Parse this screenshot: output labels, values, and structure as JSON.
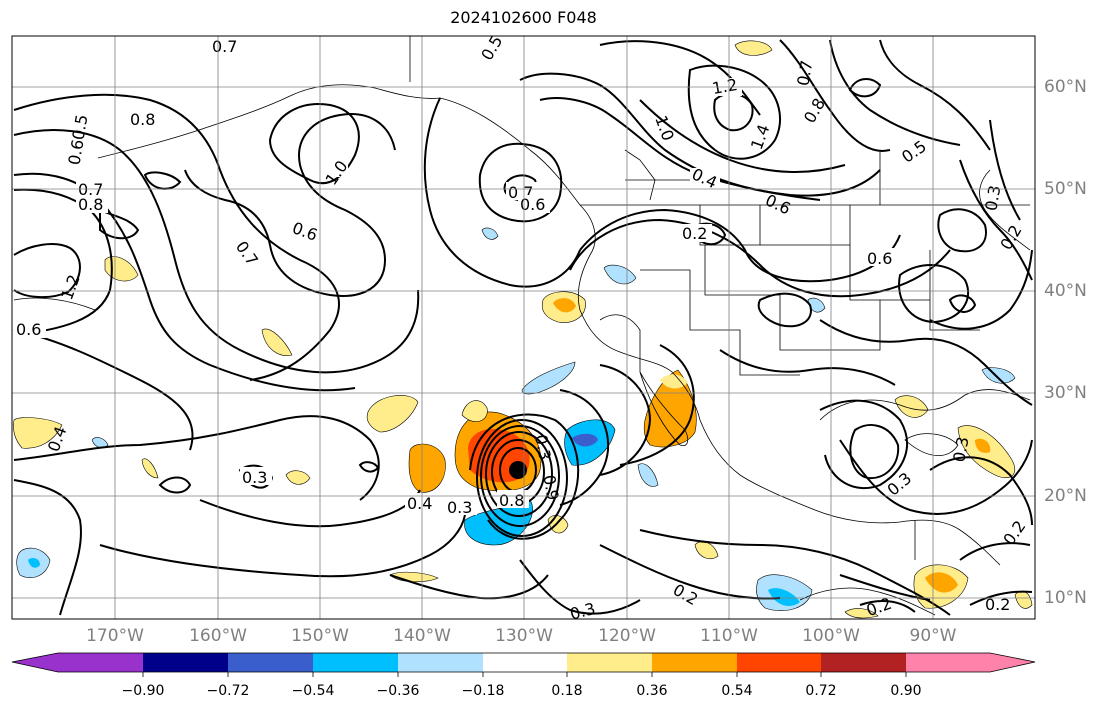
{
  "title": "2024102600 F048",
  "map": {
    "lon_labels": [
      "170°W",
      "160°W",
      "150°W",
      "140°W",
      "130°W",
      "120°W",
      "110°W",
      "100°W",
      "90°W"
    ],
    "lat_labels": [
      "60°N",
      "50°N",
      "40°N",
      "30°N",
      "20°N",
      "10°N"
    ],
    "contour_labels": [
      "0.7",
      "0.5",
      "0.8",
      "0.5",
      "0.6",
      "0.7",
      "0.8",
      "1.2",
      "0.6",
      "1.0",
      "0.6",
      "0.7",
      "0.7",
      "0.6",
      "0.7",
      "1.2",
      "1.4",
      "1.0",
      "0.4",
      "0.6",
      "0.2",
      "0.8",
      "0.5",
      "0.3",
      "0.2",
      "0.6",
      "0.4",
      "0.3",
      "0.3",
      "0.4",
      "0.3",
      "0.8",
      "0.9",
      "0.3",
      "0.3",
      "0.2",
      "0.3",
      "0.2",
      "0.2",
      "0.2"
    ],
    "center_marker": "storm-center"
  },
  "colorbar": {
    "ticks": [
      "−0.90",
      "−0.72",
      "−0.54",
      "−0.36",
      "−0.18",
      "0.18",
      "0.36",
      "0.54",
      "0.72",
      "0.90"
    ],
    "colors": [
      "#9932cc",
      "#00008b",
      "#3a5fcd",
      "#00bfff",
      "#b0e2ff",
      "#ffffff",
      "#ffec8b",
      "#ffa500",
      "#ff4500",
      "#b22222",
      "#ff82ab"
    ]
  }
}
